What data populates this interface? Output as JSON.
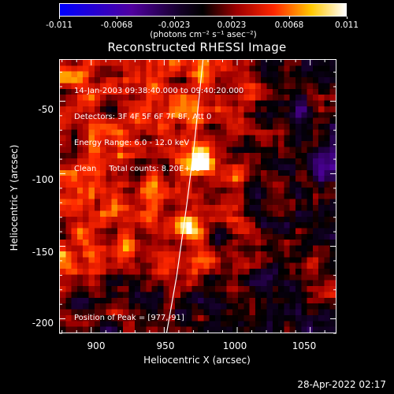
{
  "colorbar": {
    "tick_labels": [
      "-0.011",
      "-0.0068",
      "-0.0023",
      "0.0023",
      "0.0068",
      "0.011"
    ],
    "units": "(photons cm⁻² s⁻¹ asec⁻²)"
  },
  "plot": {
    "title": "Reconstructed RHESSI Image",
    "info_lines": [
      "14-Jan-2003 09:38:40.000 to 09:40:20.000",
      "Detectors: 3F 4F 5F 6F 7F 8F, Att 0",
      "Energy Range: 6.0 - 12.0 keV",
      "Clean     Total counts: 8.20E+03"
    ],
    "peak_label": "Position of Peak = [977,-91]",
    "x_ticks": [
      "900",
      "950",
      "1000",
      "1050"
    ],
    "y_ticks": [
      "-50",
      "-100",
      "-150",
      "-200"
    ],
    "xlabel": "Heliocentric X (arcsec)",
    "ylabel": "Heliocentric Y (arcsec)"
  },
  "chart_data": {
    "type": "heatmap",
    "title": "Reconstructed RHESSI Image",
    "xlabel": "Heliocentric X (arcsec)",
    "ylabel": "Heliocentric Y (arcsec)",
    "xlim": [
      878,
      1068
    ],
    "ylim": [
      -210,
      -21
    ],
    "colorbar_range": [
      -0.011,
      0.011
    ],
    "colorbar_ticks": [
      -0.011,
      -0.0068,
      -0.0023,
      0.0023,
      0.0068,
      0.011
    ],
    "peak": [
      977,
      -91
    ],
    "sources": [
      {
        "x": 977,
        "y": -91,
        "relative_intensity": 1.0
      },
      {
        "x": 966,
        "y": -138,
        "relative_intensity": 0.75
      }
    ],
    "limb_curve": [
      [
        951,
        -210
      ],
      [
        958,
        -170
      ],
      [
        965,
        -120
      ],
      [
        970,
        -80
      ],
      [
        976,
        -21
      ]
    ]
  },
  "footer": {
    "timestamp": "28-Apr-2022 02:17"
  }
}
